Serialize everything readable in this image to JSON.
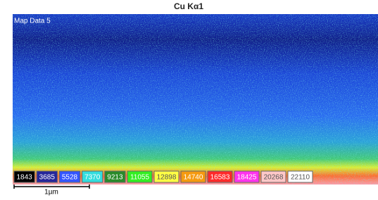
{
  "title": "Cu Kα1",
  "map_label": "Map Data 5",
  "legend": [
    {
      "value": 1843,
      "color": "#000000",
      "text_color": "#ffffff"
    },
    {
      "value": 3685,
      "color": "#26269a",
      "text_color": "#ffffff"
    },
    {
      "value": 5528,
      "color": "#3355ff",
      "text_color": "#ffffff"
    },
    {
      "value": 7370,
      "color": "#33dddd",
      "text_color": "#ffffff"
    },
    {
      "value": 9213,
      "color": "#2a8a2a",
      "text_color": "#ffffff"
    },
    {
      "value": 11055,
      "color": "#33ee22",
      "text_color": "#ffffff"
    },
    {
      "value": 12898,
      "color": "#ffff44",
      "text_color": "#555555"
    },
    {
      "value": 14740,
      "color": "#f59a10",
      "text_color": "#ffffff"
    },
    {
      "value": 16583,
      "color": "#ff2a2a",
      "text_color": "#ffffff"
    },
    {
      "value": 18425,
      "color": "#ff33ee",
      "text_color": "#ffffff"
    },
    {
      "value": 20268,
      "color": "#ffc8c8",
      "text_color": "#555555"
    },
    {
      "value": 22110,
      "color": "#ffffff",
      "text_color": "#555555"
    }
  ],
  "scale_bar": "1µm"
}
